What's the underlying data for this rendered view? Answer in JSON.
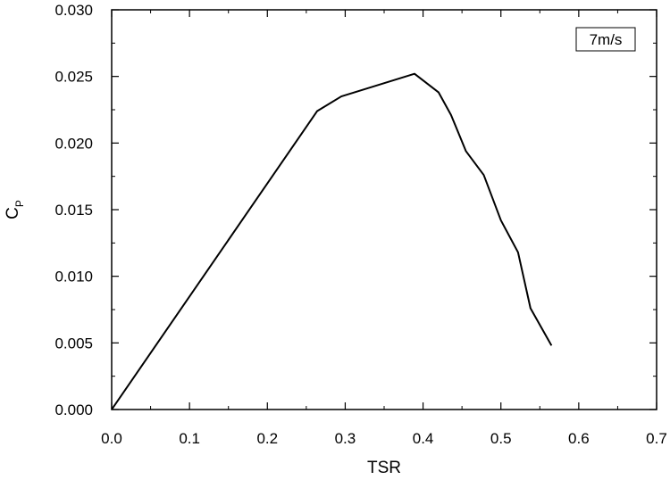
{
  "chart_data": {
    "type": "line",
    "title": "",
    "xlabel": "TSR",
    "ylabel": {
      "main": "C",
      "subscript": "P"
    },
    "xlim": [
      0.0,
      0.7
    ],
    "ylim": [
      0.0,
      0.03
    ],
    "x_ticks": [
      "0.0",
      "0.1",
      "0.2",
      "0.3",
      "0.4",
      "0.5",
      "0.6",
      "0.7"
    ],
    "y_ticks": [
      "0.000",
      "0.005",
      "0.010",
      "0.015",
      "0.020",
      "0.025",
      "0.030"
    ],
    "grid": false,
    "legend_placement": "top-right",
    "series": [
      {
        "name": "7m/s",
        "color": "#000000",
        "x": [
          0.0,
          0.264,
          0.295,
          0.389,
          0.42,
          0.436,
          0.455,
          0.478,
          0.5,
          0.522,
          0.538,
          0.565
        ],
        "y": [
          0.0,
          0.0224,
          0.0235,
          0.0252,
          0.0238,
          0.0221,
          0.0194,
          0.0176,
          0.0142,
          0.0118,
          0.0076,
          0.0048
        ]
      }
    ]
  }
}
